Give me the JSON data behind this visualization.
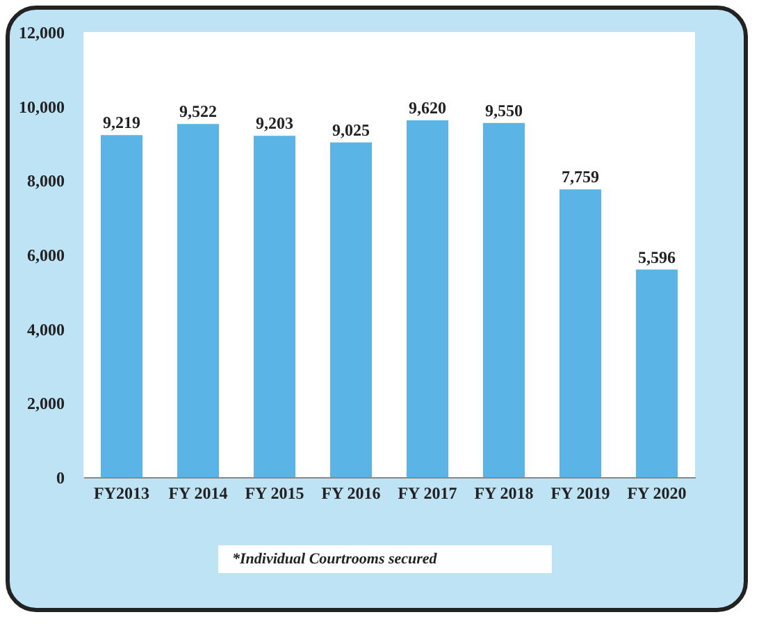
{
  "chart_data": {
    "type": "bar",
    "categories": [
      "FY2013",
      "FY 2014",
      "FY 2015",
      "FY 2016",
      "FY 2017",
      "FY 2018",
      "FY 2019",
      "FY 2020"
    ],
    "values": [
      9219,
      9522,
      9203,
      9025,
      9620,
      9550,
      7759,
      5596
    ],
    "color": "#5ab4e6",
    "ylim": [
      0,
      12000
    ],
    "yticks": [
      {
        "value": 0,
        "label": "0"
      },
      {
        "value": 2000,
        "label": "2,000"
      },
      {
        "value": 4000,
        "label": "4,000"
      },
      {
        "value": 6000,
        "label": "6,000"
      },
      {
        "value": 8000,
        "label": "8,000"
      },
      {
        "value": 10000,
        "label": "10,000"
      },
      {
        "value": 12000,
        "label": "12,000"
      }
    ],
    "value_labels": [
      "9,219",
      "9,522",
      "9,203",
      "9,025",
      "9,620",
      "9,550",
      "7,759",
      "5,596"
    ],
    "grid": false,
    "annotations": [
      "*Individual Courtrooms secured"
    ]
  }
}
